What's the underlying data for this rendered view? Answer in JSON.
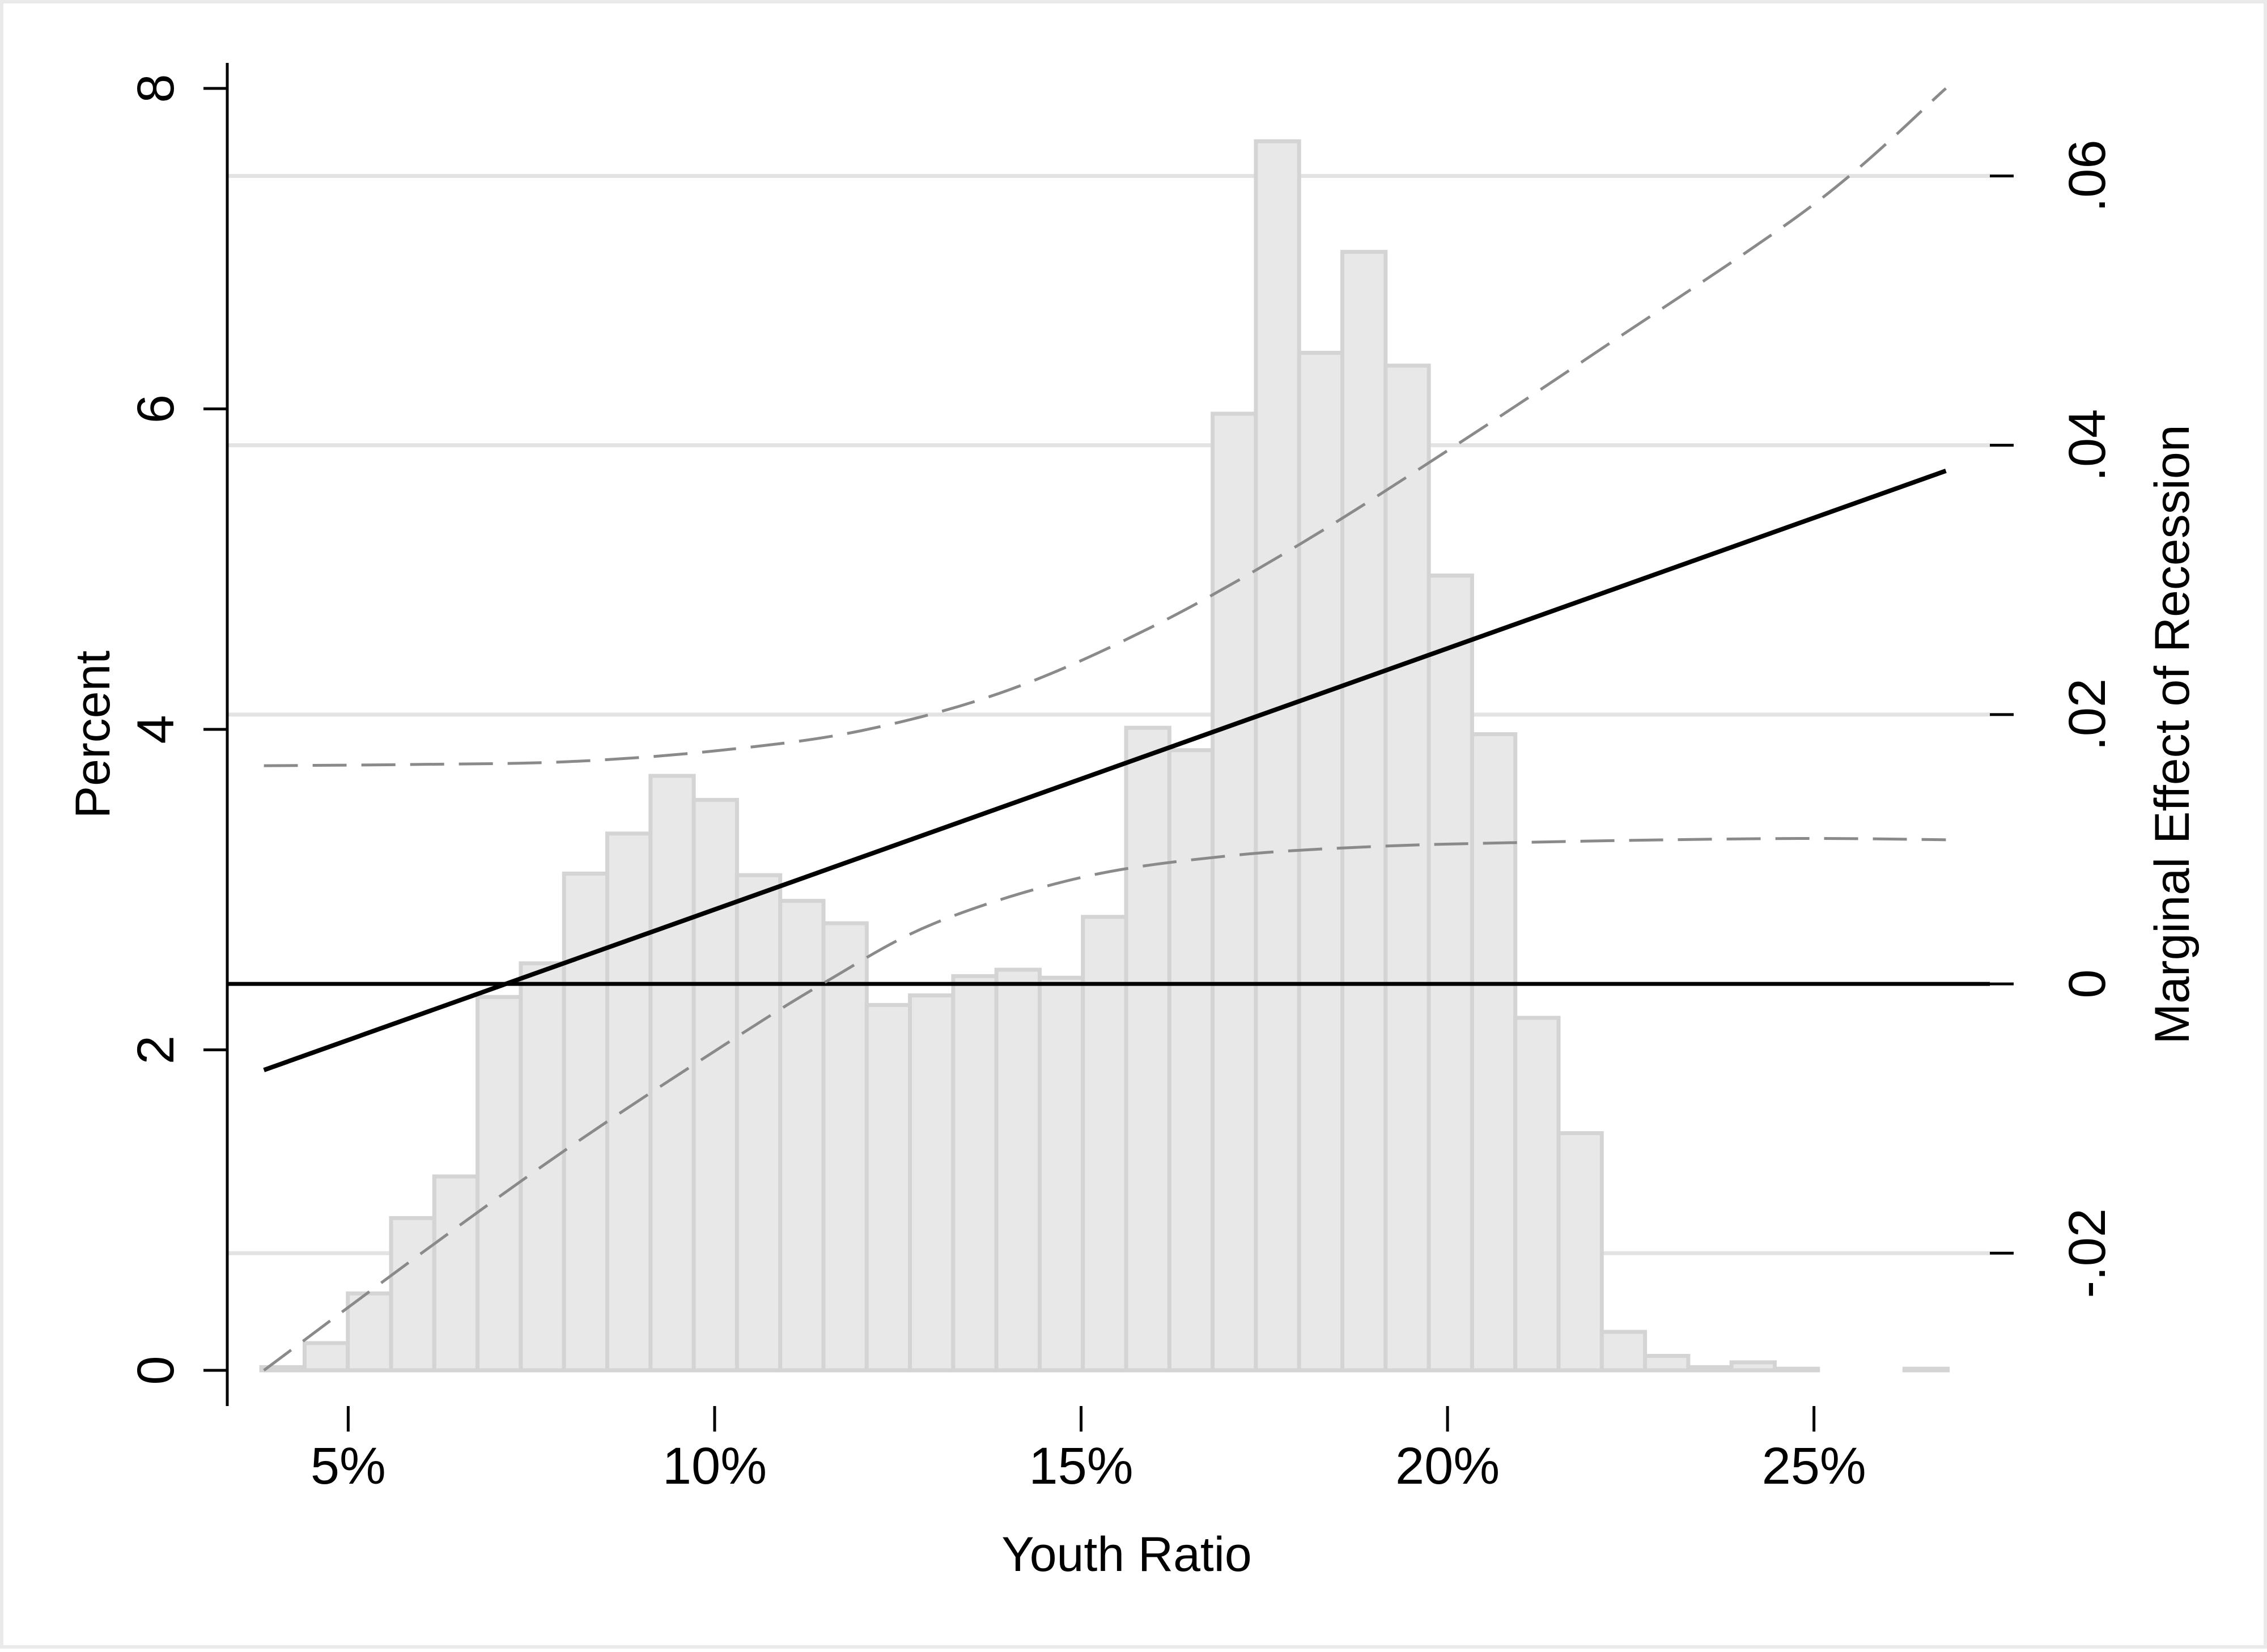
{
  "chart_data": {
    "type": "bar",
    "xlabel": "Youth Ratio",
    "ylabel": "Percent",
    "y2label": "Marginal Effect of Recession",
    "x_ticks": [
      "5%",
      "10%",
      "15%",
      "20%",
      "25%"
    ],
    "x_tick_values": [
      0.05,
      0.1,
      0.15,
      0.2,
      0.25
    ],
    "xlim": [
      0.0335,
      0.274
    ],
    "ylim": [
      0,
      8
    ],
    "y_ticks": [
      "0",
      "2",
      "4",
      "6",
      "8"
    ],
    "y_tick_values": [
      0,
      2,
      4,
      6,
      8
    ],
    "y2lim": [
      -0.0287,
      0.0665
    ],
    "y2_ticks": [
      "-.02",
      "0",
      ".02",
      ".04",
      ".06"
    ],
    "y2_tick_values": [
      -0.02,
      0,
      0.02,
      0.04,
      0.06
    ],
    "bin_width": 0.0059,
    "histogram": {
      "x": [
        0.0411,
        0.047,
        0.0529,
        0.0588,
        0.0647,
        0.0706,
        0.0765,
        0.0824,
        0.0883,
        0.0942,
        0.1001,
        0.106,
        0.1119,
        0.1178,
        0.1237,
        0.1296,
        0.1355,
        0.1414,
        0.1473,
        0.1532,
        0.1591,
        0.165,
        0.1709,
        0.1768,
        0.1827,
        0.1886,
        0.1945,
        0.2004,
        0.2063,
        0.2122,
        0.2181,
        0.224,
        0.2299,
        0.2358,
        0.2417,
        0.2476,
        0.2535,
        0.2594,
        0.2653
      ],
      "values": [
        0.02,
        0.17,
        0.48,
        0.95,
        1.21,
        2.33,
        2.54,
        3.1,
        3.35,
        3.71,
        3.56,
        3.09,
        2.93,
        2.79,
        2.28,
        2.34,
        2.46,
        2.5,
        2.45,
        2.83,
        4.01,
        3.87,
        5.97,
        7.67,
        6.35,
        6.98,
        6.27,
        4.96,
        3.97,
        2.2,
        1.48,
        0.24,
        0.09,
        0.02,
        0.05,
        0.01,
        0.0,
        0.0,
        0.01
      ]
    },
    "marginal_effect": {
      "x": [
        0.0385,
        0.268
      ],
      "values": [
        -0.0064,
        0.0381
      ]
    },
    "ci_upper": {
      "x": [
        0.0385,
        0.06,
        0.08,
        0.1,
        0.12,
        0.14,
        0.16,
        0.18,
        0.2,
        0.22,
        0.25,
        0.268
      ],
      "values": [
        0.0162,
        0.0163,
        0.0165,
        0.0173,
        0.0188,
        0.0218,
        0.0266,
        0.0327,
        0.0396,
        0.0468,
        0.0579,
        0.0665
      ]
    },
    "ci_lower": {
      "x": [
        0.0385,
        0.06,
        0.08,
        0.1,
        0.115,
        0.13,
        0.15,
        0.17,
        0.19,
        0.21,
        0.23,
        0.25,
        0.268
      ],
      "values": [
        -0.0287,
        -0.02,
        -0.0122,
        -0.005,
        0.0001,
        0.0045,
        0.0079,
        0.0095,
        0.0102,
        0.0105,
        0.0107,
        0.0108,
        0.0107
      ]
    },
    "reference_line_y2": 0,
    "grid": true,
    "colors": {
      "bar_fill": "#e8e8e8",
      "bar_stroke": "#d4d4d4",
      "grid": "#e3e3e3",
      "ci_line": "#8a8a8a",
      "effect_line": "#000000",
      "axis": "#000000"
    }
  }
}
